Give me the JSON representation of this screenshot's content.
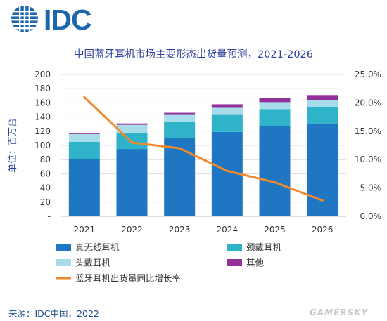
{
  "brand": {
    "logo_text": "IDC",
    "logo_color": "#1b66ad"
  },
  "source_text": "来源：IDC中国，2022",
  "watermark": "GAMERSKY",
  "chart_data": {
    "type": "bar",
    "stacked": true,
    "title": "中国蓝牙耳机市场主要形态出货量预测，2021-2026",
    "ylabel": "单位：百万台",
    "categories": [
      "2021",
      "2022",
      "2023",
      "2024",
      "2025",
      "2026"
    ],
    "ylim": [
      0,
      200
    ],
    "y_ticks": [
      "-",
      "20",
      "40",
      "60",
      "80",
      "100",
      "120",
      "140",
      "160",
      "180",
      "200"
    ],
    "y2lim": [
      0,
      25
    ],
    "y2_ticks": [
      "0.0%",
      "5.0%",
      "10.0%",
      "15.0%",
      "20.0%",
      "25.0%"
    ],
    "grid": true,
    "legend_position": "bottom",
    "series": [
      {
        "name": "真无线耳机",
        "color": "#1f77c4",
        "values": [
          81,
          95,
          110,
          119,
          127,
          131
        ]
      },
      {
        "name": "颈戴耳机",
        "color": "#2eb3c9",
        "values": [
          24,
          23,
          23,
          24,
          24,
          23
        ]
      },
      {
        "name": "头戴耳机",
        "color": "#a7dcea",
        "values": [
          11,
          11,
          10,
          10,
          10,
          10
        ]
      },
      {
        "name": "其他",
        "color": "#93319b",
        "values": [
          1,
          2,
          3,
          5,
          6,
          7
        ]
      }
    ],
    "line_series": {
      "name": "蓝牙耳机出货量同比增长率",
      "color": "#f08a2c",
      "axis": "right",
      "values": [
        21.0,
        13.0,
        12.0,
        8.0,
        6.0,
        2.8
      ]
    },
    "legend": [
      {
        "label": "真无线耳机",
        "kind": "box",
        "color": "#1f77c4"
      },
      {
        "label": "颈戴耳机",
        "kind": "box",
        "color": "#2eb3c9"
      },
      {
        "label": "头戴耳机",
        "kind": "box",
        "color": "#a7dcea"
      },
      {
        "label": "其他",
        "kind": "box",
        "color": "#93319b"
      },
      {
        "label": "蓝牙耳机出货量同比增长率",
        "kind": "line",
        "color": "#f08a2c"
      }
    ]
  }
}
